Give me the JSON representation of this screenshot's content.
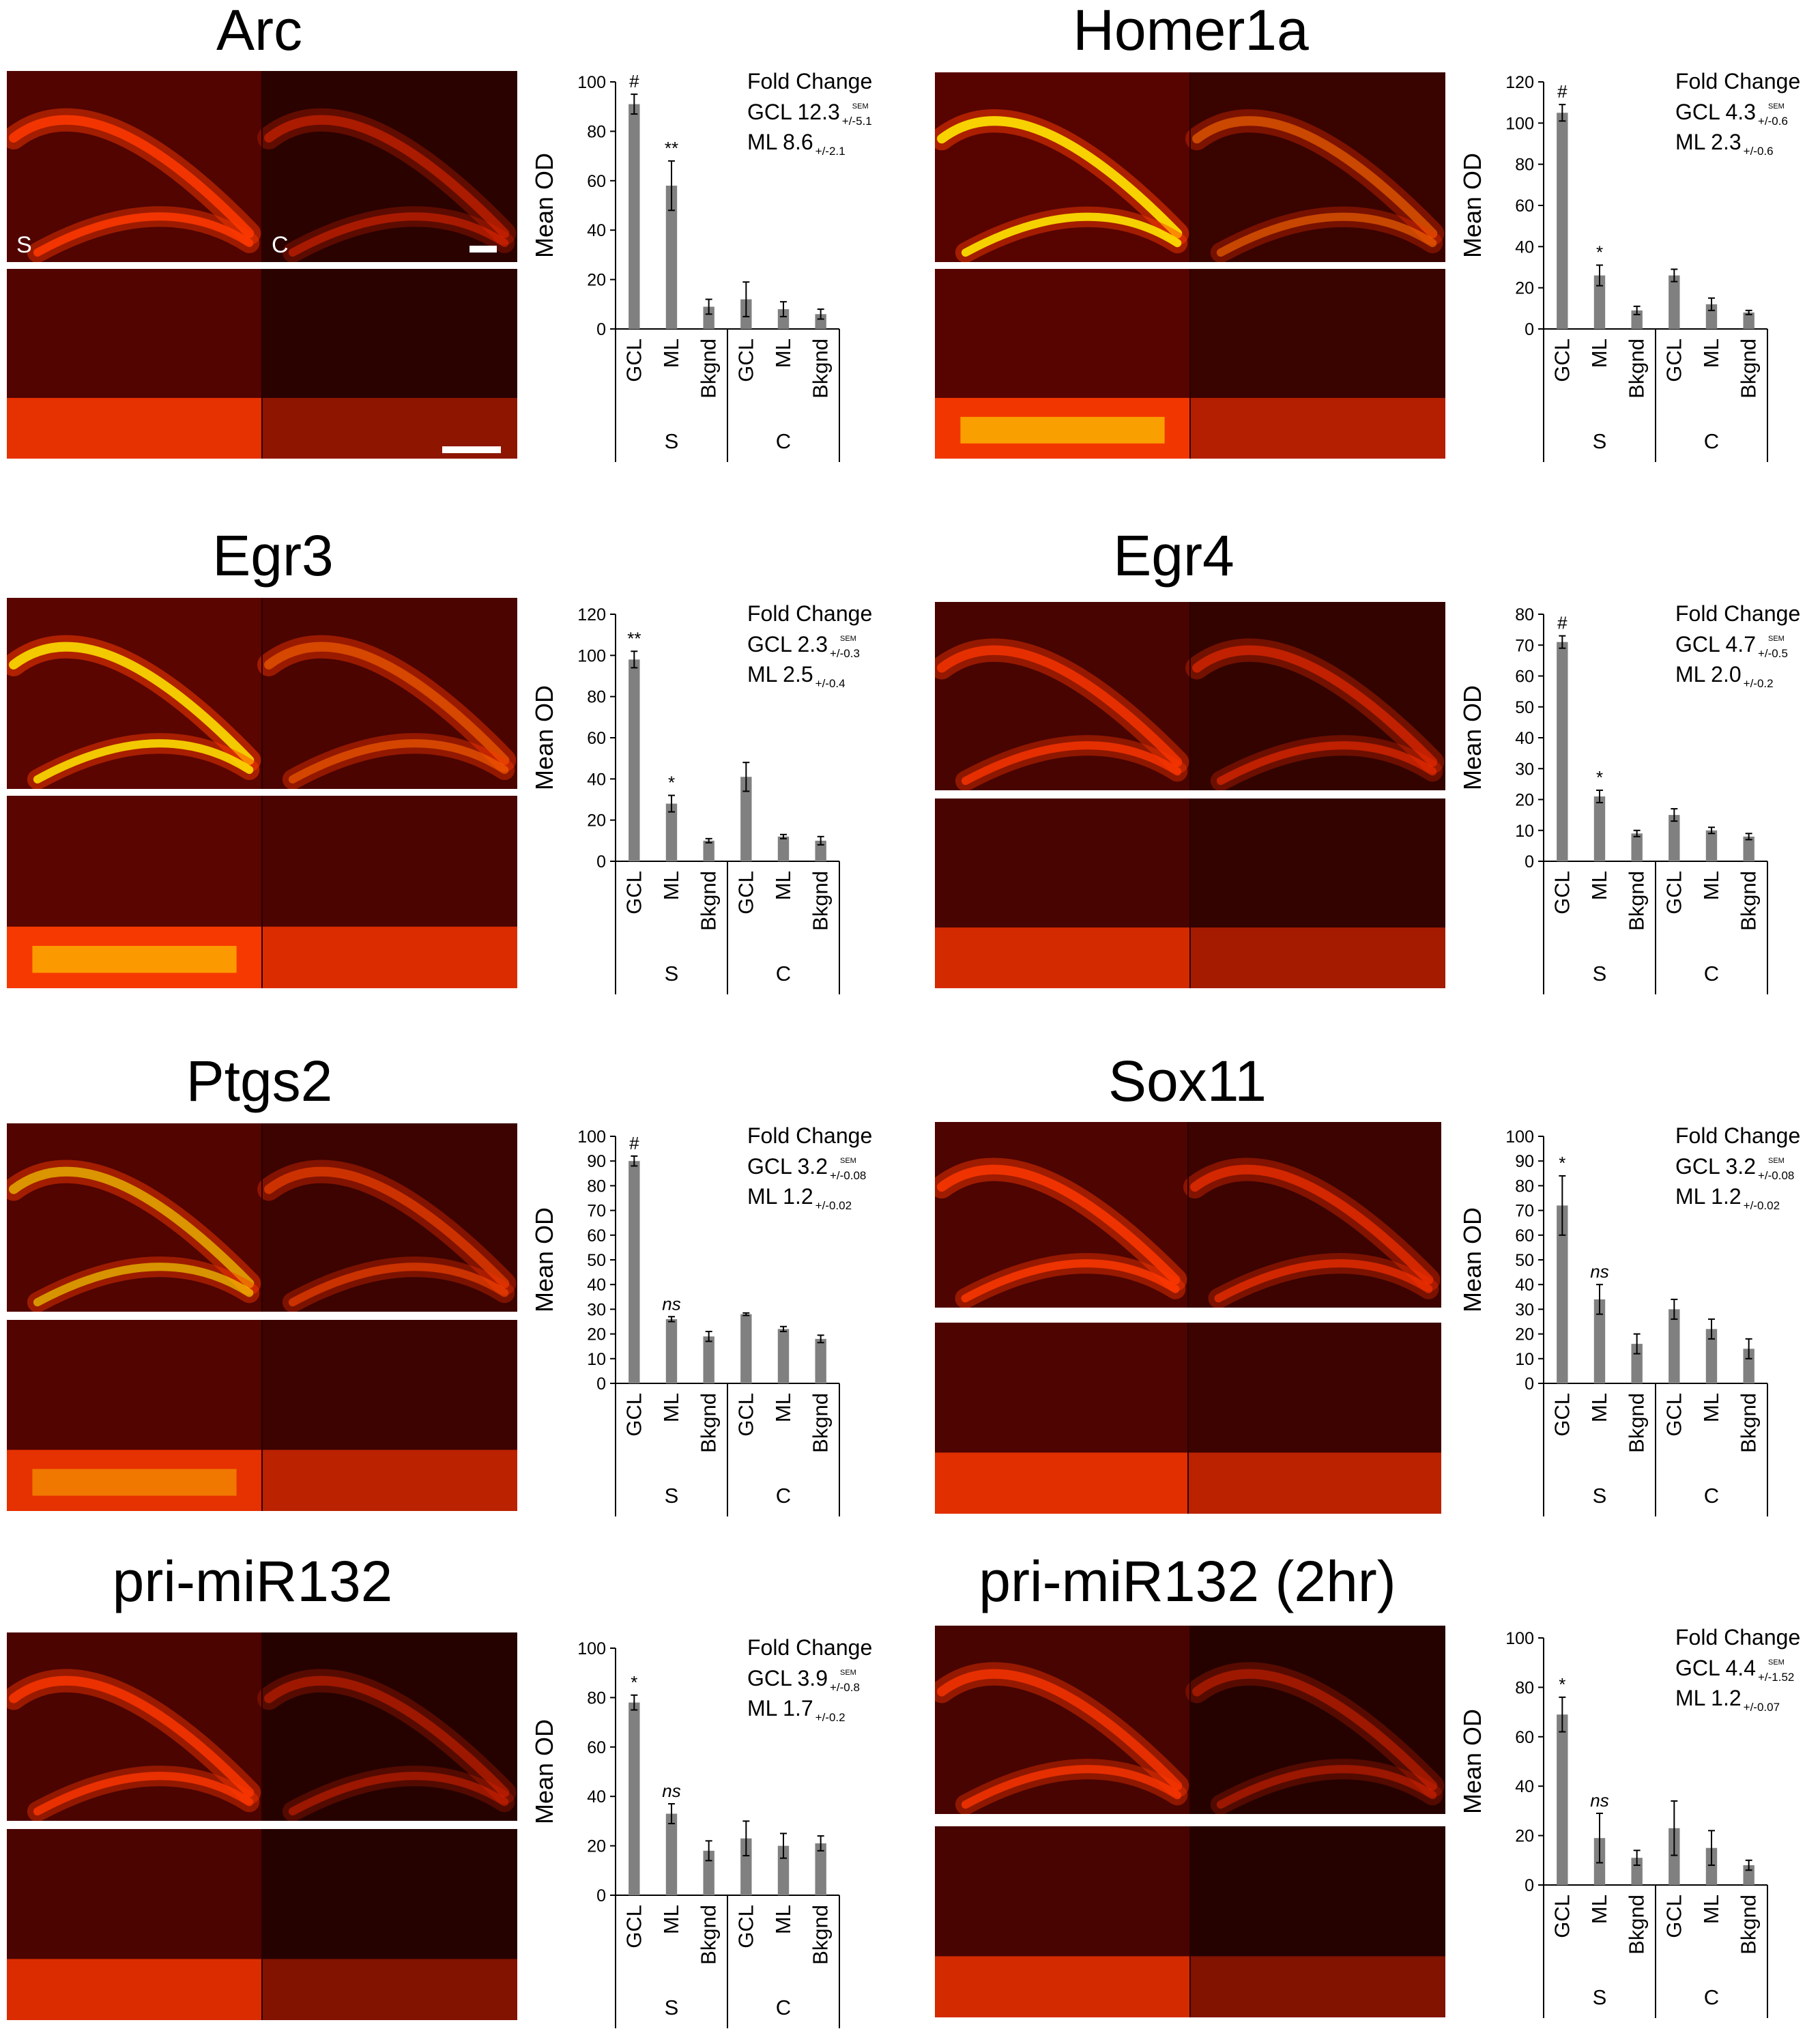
{
  "colors": {
    "bar": "#808080",
    "axis": "#000000",
    "micrograph_bg": "#1a0000",
    "micrograph_signal": "#ff2a00",
    "micrograph_hot": "#ffe000"
  },
  "chart_data": [
    {
      "type": "bar",
      "title": "Arc",
      "ylabel": "Mean OD",
      "ylim": [
        0,
        100
      ],
      "yticks": [
        "0",
        "20",
        "40",
        "60",
        "80",
        "100"
      ],
      "categories": [
        "GCL",
        "ML",
        "Bkgnd",
        "GCL",
        "ML",
        "Bkgnd"
      ],
      "groups": [
        "S",
        "C"
      ],
      "values": [
        91,
        58,
        9,
        12,
        8,
        6
      ],
      "errors": [
        4,
        10,
        3,
        7,
        3,
        2
      ],
      "significance": [
        "#",
        "**",
        "",
        "",
        "",
        ""
      ],
      "fold_change": {
        "heading": "Fold Change",
        "lines": [
          {
            "label": "GCL 12.3",
            "err": "+/-5.1",
            "sem": "SEM"
          },
          {
            "label": "ML 8.6",
            "err": "+/-2.1",
            "sem": ""
          }
        ]
      },
      "micrograph": {
        "labels": [
          "S",
          "C"
        ],
        "s_intensity": 0.85,
        "c_intensity": 0.2,
        "hot": 0.0,
        "scale_bar": true
      }
    },
    {
      "type": "bar",
      "title": "Homer1a",
      "ylabel": "Mean OD",
      "ylim": [
        0,
        120
      ],
      "yticks": [
        "0",
        "20",
        "40",
        "60",
        "80",
        "100",
        "120"
      ],
      "categories": [
        "GCL",
        "ML",
        "Bkgnd",
        "GCL",
        "ML",
        "Bkgnd"
      ],
      "groups": [
        "S",
        "C"
      ],
      "values": [
        105,
        26,
        9,
        26,
        12,
        8
      ],
      "errors": [
        4,
        5,
        2,
        3,
        3,
        1
      ],
      "significance": [
        "#",
        "*",
        "",
        "",
        "",
        ""
      ],
      "fold_change": {
        "heading": "Fold Change",
        "lines": [
          {
            "label": "GCL 4.3",
            "err": "+/-0.6",
            "sem": "SEM"
          },
          {
            "label": "ML  2.3",
            "err": "+/-0.6",
            "sem": ""
          }
        ]
      },
      "micrograph": {
        "labels": [
          "",
          ""
        ],
        "s_intensity": 0.95,
        "c_intensity": 0.45,
        "hot": 0.9,
        "scale_bar": false
      }
    },
    {
      "type": "bar",
      "title": "Egr3",
      "ylabel": "Mean OD",
      "ylim": [
        0,
        120
      ],
      "yticks": [
        "0",
        "20",
        "40",
        "60",
        "80",
        "100",
        "120"
      ],
      "categories": [
        "GCL",
        "ML",
        "Bkgnd",
        "GCL",
        "ML",
        "Bkgnd"
      ],
      "groups": [
        "S",
        "C"
      ],
      "values": [
        98,
        28,
        10,
        41,
        12,
        10
      ],
      "errors": [
        4,
        4,
        1,
        7,
        1,
        2
      ],
      "significance": [
        "**",
        "*",
        "",
        "",
        "",
        ""
      ],
      "fold_change": {
        "heading": "Fold Change",
        "lines": [
          {
            "label": "GCL 2.3",
            "err": "+/-0.3",
            "sem": "SEM"
          },
          {
            "label": "ML  2.5",
            "err": "+/-0.4",
            "sem": ""
          }
        ]
      },
      "micrograph": {
        "labels": [
          "",
          ""
        ],
        "s_intensity": 1.0,
        "c_intensity": 0.75,
        "hot": 0.85,
        "scale_bar": false
      }
    },
    {
      "type": "bar",
      "title": "Egr4",
      "ylabel": "Mean OD",
      "ylim": [
        0,
        80
      ],
      "yticks": [
        "0",
        "10",
        "20",
        "30",
        "40",
        "50",
        "60",
        "70",
        "80"
      ],
      "categories": [
        "GCL",
        "ML",
        "Bkgnd",
        "GCL",
        "ML",
        "Bkgnd"
      ],
      "groups": [
        "S",
        "C"
      ],
      "values": [
        71,
        21,
        9,
        15,
        10,
        8
      ],
      "errors": [
        2,
        2,
        1,
        2,
        1,
        1
      ],
      "significance": [
        "#",
        "*",
        "",
        "",
        "",
        ""
      ],
      "fold_change": {
        "heading": "Fold Change",
        "lines": [
          {
            "label": "GCL 4.7",
            "err": "+/-0.5",
            "sem": "SEM"
          },
          {
            "label": "ML  2.0",
            "err": "+/-0.2",
            "sem": ""
          }
        ]
      },
      "micrograph": {
        "labels": [
          "",
          ""
        ],
        "s_intensity": 0.7,
        "c_intensity": 0.35,
        "hot": 0.0,
        "scale_bar": false
      }
    },
    {
      "type": "bar",
      "title": "Ptgs2",
      "ylabel": "Mean OD",
      "ylim": [
        0,
        100
      ],
      "yticks": [
        "0",
        "10",
        "20",
        "30",
        "40",
        "50",
        "60",
        "70",
        "80",
        "90",
        "100"
      ],
      "categories": [
        "GCL",
        "ML",
        "Bkgnd",
        "GCL",
        "ML",
        "Bkgnd"
      ],
      "groups": [
        "S",
        "C"
      ],
      "values": [
        90,
        26,
        19,
        28,
        22,
        18
      ],
      "errors": [
        2,
        1,
        2,
        0.5,
        1,
        1.5
      ],
      "significance": [
        "#",
        "ns",
        "",
        "",
        "",
        ""
      ],
      "fold_change": {
        "heading": "Fold Change",
        "lines": [
          {
            "label": "GCL 3.2",
            "err": "+/-0.08",
            "sem": "SEM"
          },
          {
            "label": "ML  1.2",
            "err": "+/-0.02",
            "sem": ""
          }
        ]
      },
      "micrograph": {
        "labels": [
          "",
          ""
        ],
        "s_intensity": 0.85,
        "c_intensity": 0.5,
        "hot": 0.6,
        "scale_bar": false
      }
    },
    {
      "type": "bar",
      "title": "Sox11",
      "ylabel": "Mean OD",
      "ylim": [
        0,
        100
      ],
      "yticks": [
        "0",
        "10",
        "20",
        "30",
        "40",
        "50",
        "60",
        "70",
        "80",
        "90",
        "100"
      ],
      "categories": [
        "GCL",
        "ML",
        "Bkgnd",
        "GCL",
        "ML",
        "Bkgnd"
      ],
      "groups": [
        "S",
        "C"
      ],
      "values": [
        72,
        34,
        16,
        30,
        22,
        14
      ],
      "errors": [
        12,
        6,
        4,
        4,
        4,
        4
      ],
      "significance": [
        "*",
        "ns",
        "",
        "",
        "",
        ""
      ],
      "fold_change": {
        "heading": "Fold Change",
        "lines": [
          {
            "label": "GCL 3.2",
            "err": "+/-0.08",
            "sem": "SEM"
          },
          {
            "label": "ML  1.2",
            "err": "+/-0.02",
            "sem": ""
          }
        ]
      },
      "micrograph": {
        "labels": [
          "",
          ""
        ],
        "s_intensity": 0.8,
        "c_intensity": 0.5,
        "hot": 0.0,
        "scale_bar": false
      }
    },
    {
      "type": "bar",
      "title": "pri-miR132",
      "ylabel": "Mean OD",
      "ylim": [
        0,
        100
      ],
      "yticks": [
        "0",
        "20",
        "40",
        "60",
        "80",
        "100"
      ],
      "categories": [
        "GCL",
        "ML",
        "Bkgnd",
        "GCL",
        "ML",
        "Bkgnd"
      ],
      "groups": [
        "S",
        "C"
      ],
      "values": [
        78,
        33,
        18,
        23,
        20,
        21
      ],
      "errors": [
        3,
        4,
        4,
        7,
        5,
        3
      ],
      "significance": [
        "*",
        "ns",
        "",
        "",
        "",
        ""
      ],
      "fold_change": {
        "heading": "Fold Change",
        "lines": [
          {
            "label": "GCL 3.9",
            "err": "+/-0.8",
            "sem": "SEM"
          },
          {
            "label": "ML  1.7",
            "err": "+/-0.2",
            "sem": ""
          }
        ]
      },
      "micrograph": {
        "labels": [
          "",
          ""
        ],
        "s_intensity": 0.75,
        "c_intensity": 0.12,
        "hot": 0.0,
        "scale_bar": false
      }
    },
    {
      "type": "bar",
      "title": "pri-miR132 (2hr)",
      "ylabel": "Mean OD",
      "ylim": [
        0,
        100
      ],
      "yticks": [
        "0",
        "20",
        "40",
        "60",
        "80",
        "100"
      ],
      "categories": [
        "GCL",
        "ML",
        "Bkgnd",
        "GCL",
        "ML",
        "Bkgnd"
      ],
      "groups": [
        "S",
        "C"
      ],
      "values": [
        69,
        19,
        11,
        23,
        15,
        8
      ],
      "errors": [
        7,
        10,
        3,
        11,
        7,
        2
      ],
      "significance": [
        "*",
        "ns",
        "",
        "",
        "",
        ""
      ],
      "fold_change": {
        "heading": "Fold Change",
        "lines": [
          {
            "label": "GCL 4.4",
            "err": "+/-1.52",
            "sem": "SEM"
          },
          {
            "label": "ML  1.2",
            "err": "+/-0.07",
            "sem": ""
          }
        ]
      },
      "micrograph": {
        "labels": [
          "",
          ""
        ],
        "s_intensity": 0.7,
        "c_intensity": 0.12,
        "hot": 0.0,
        "scale_bar": false
      }
    }
  ]
}
